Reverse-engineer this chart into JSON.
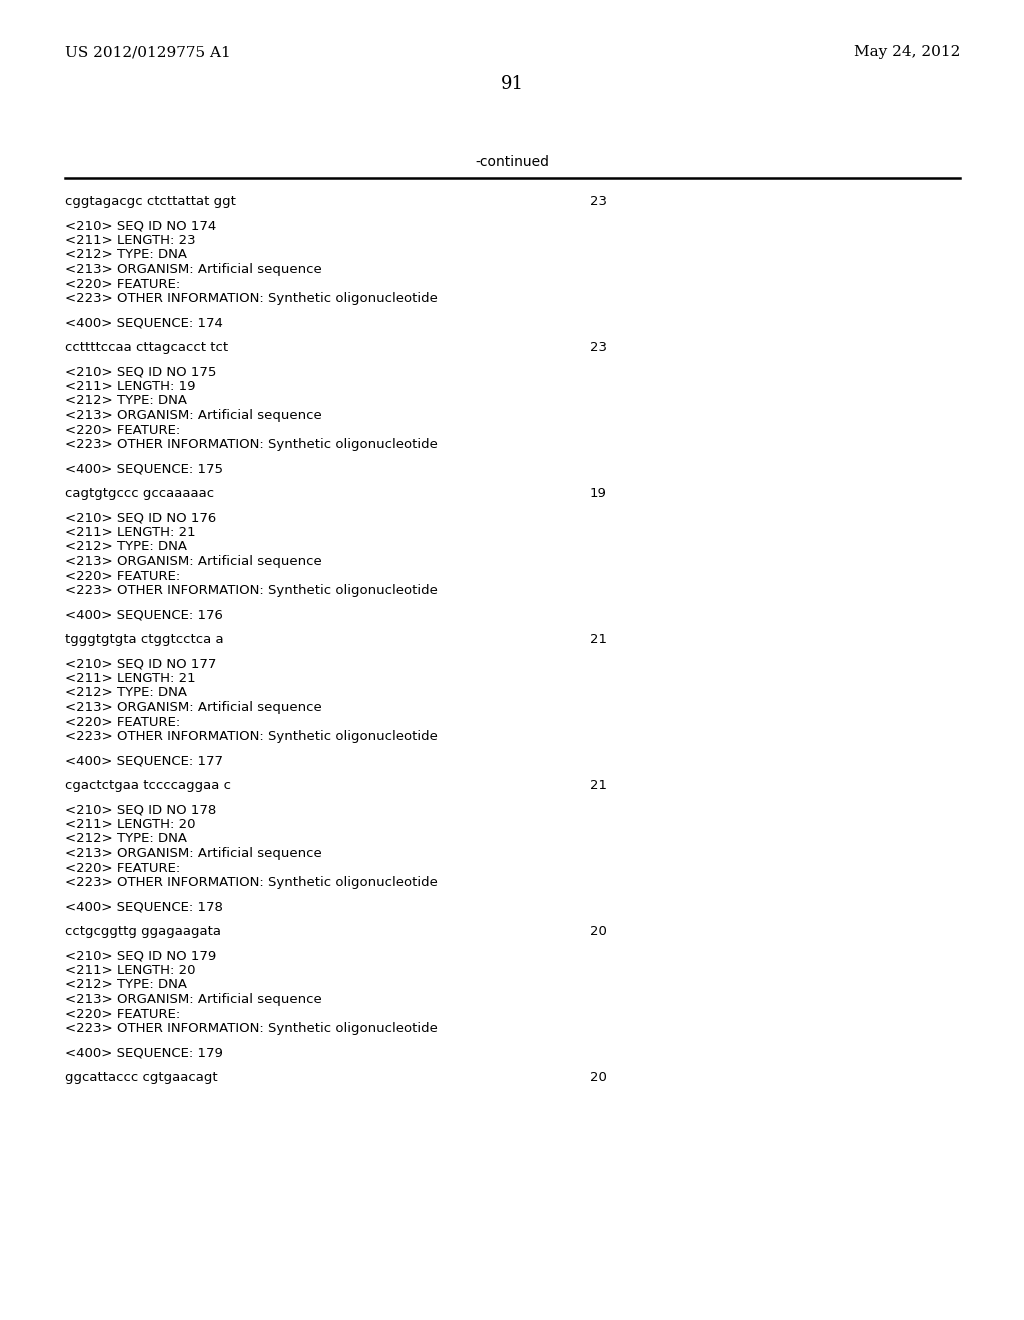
{
  "bg_color": "#ffffff",
  "header_left": "US 2012/0129775 A1",
  "header_right": "May 24, 2012",
  "page_number": "91",
  "continued_label": "-continued",
  "monospace_font": "Courier New",
  "serif_font": "DejaVu Serif",
  "content_blocks": [
    {
      "kind": "seq",
      "text": "cggtagacgc ctcttattat ggt",
      "num": "23"
    },
    {
      "kind": "blank"
    },
    {
      "kind": "meta",
      "lines": [
        "<210> SEQ ID NO 174",
        "<211> LENGTH: 23",
        "<212> TYPE: DNA",
        "<213> ORGANISM: Artificial sequence",
        "<220> FEATURE:",
        "<223> OTHER INFORMATION: Synthetic oligonucleotide"
      ]
    },
    {
      "kind": "blank"
    },
    {
      "kind": "seqlabel",
      "text": "<400> SEQUENCE: 174"
    },
    {
      "kind": "blank"
    },
    {
      "kind": "seq",
      "text": "ccttttccaa cttagcacct tct",
      "num": "23"
    },
    {
      "kind": "blank"
    },
    {
      "kind": "meta",
      "lines": [
        "<210> SEQ ID NO 175",
        "<211> LENGTH: 19",
        "<212> TYPE: DNA",
        "<213> ORGANISM: Artificial sequence",
        "<220> FEATURE:",
        "<223> OTHER INFORMATION: Synthetic oligonucleotide"
      ]
    },
    {
      "kind": "blank"
    },
    {
      "kind": "seqlabel",
      "text": "<400> SEQUENCE: 175"
    },
    {
      "kind": "blank"
    },
    {
      "kind": "seq",
      "text": "cagtgtgccc gccaaaaac",
      "num": "19"
    },
    {
      "kind": "blank"
    },
    {
      "kind": "meta",
      "lines": [
        "<210> SEQ ID NO 176",
        "<211> LENGTH: 21",
        "<212> TYPE: DNA",
        "<213> ORGANISM: Artificial sequence",
        "<220> FEATURE:",
        "<223> OTHER INFORMATION: Synthetic oligonucleotide"
      ]
    },
    {
      "kind": "blank"
    },
    {
      "kind": "seqlabel",
      "text": "<400> SEQUENCE: 176"
    },
    {
      "kind": "blank"
    },
    {
      "kind": "seq",
      "text": "tgggtgtgta ctggtcctca a",
      "num": "21"
    },
    {
      "kind": "blank"
    },
    {
      "kind": "meta",
      "lines": [
        "<210> SEQ ID NO 177",
        "<211> LENGTH: 21",
        "<212> TYPE: DNA",
        "<213> ORGANISM: Artificial sequence",
        "<220> FEATURE:",
        "<223> OTHER INFORMATION: Synthetic oligonucleotide"
      ]
    },
    {
      "kind": "blank"
    },
    {
      "kind": "seqlabel",
      "text": "<400> SEQUENCE: 177"
    },
    {
      "kind": "blank"
    },
    {
      "kind": "seq",
      "text": "cgactctgaa tccccaggaa c",
      "num": "21"
    },
    {
      "kind": "blank"
    },
    {
      "kind": "meta",
      "lines": [
        "<210> SEQ ID NO 178",
        "<211> LENGTH: 20",
        "<212> TYPE: DNA",
        "<213> ORGANISM: Artificial sequence",
        "<220> FEATURE:",
        "<223> OTHER INFORMATION: Synthetic oligonucleotide"
      ]
    },
    {
      "kind": "blank"
    },
    {
      "kind": "seqlabel",
      "text": "<400> SEQUENCE: 178"
    },
    {
      "kind": "blank"
    },
    {
      "kind": "seq",
      "text": "cctgcggttg ggagaagata",
      "num": "20"
    },
    {
      "kind": "blank"
    },
    {
      "kind": "meta",
      "lines": [
        "<210> SEQ ID NO 179",
        "<211> LENGTH: 20",
        "<212> TYPE: DNA",
        "<213> ORGANISM: Artificial sequence",
        "<220> FEATURE:",
        "<223> OTHER INFORMATION: Synthetic oligonucleotide"
      ]
    },
    {
      "kind": "blank"
    },
    {
      "kind": "seqlabel",
      "text": "<400> SEQUENCE: 179"
    },
    {
      "kind": "blank"
    },
    {
      "kind": "seq",
      "text": "ggcattaccc cgtgaacagt",
      "num": "20"
    }
  ]
}
